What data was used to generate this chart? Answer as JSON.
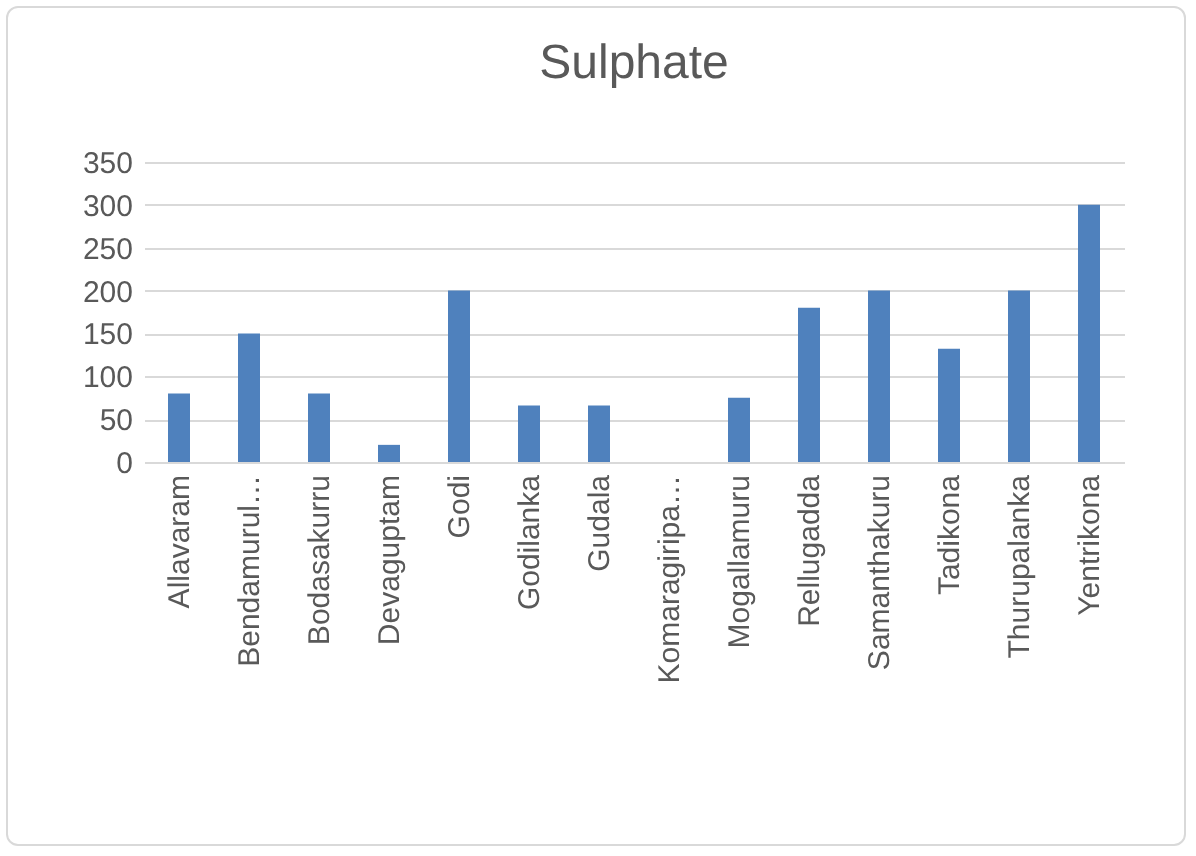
{
  "chart_data": {
    "type": "bar",
    "title": "Sulphate",
    "categories": [
      "Allavaram",
      "Bendamurul…",
      "Bodasakurru",
      "Devaguptam",
      "Godi",
      "Godilanka",
      "Gudala",
      "Komaragiripa…",
      "Mogallamuru",
      "Rellugadda",
      "Samanthakuru",
      "Tadikona",
      "Thurupalanka",
      "Yentrikona"
    ],
    "values": [
      80,
      150,
      80,
      20,
      200,
      66,
      66,
      0,
      75,
      180,
      200,
      132,
      200,
      300
    ],
    "color": "#4f81bd",
    "ylim": [
      0,
      350
    ],
    "yticks": [
      0,
      50,
      100,
      150,
      200,
      250,
      300,
      350
    ],
    "grid": "y"
  }
}
